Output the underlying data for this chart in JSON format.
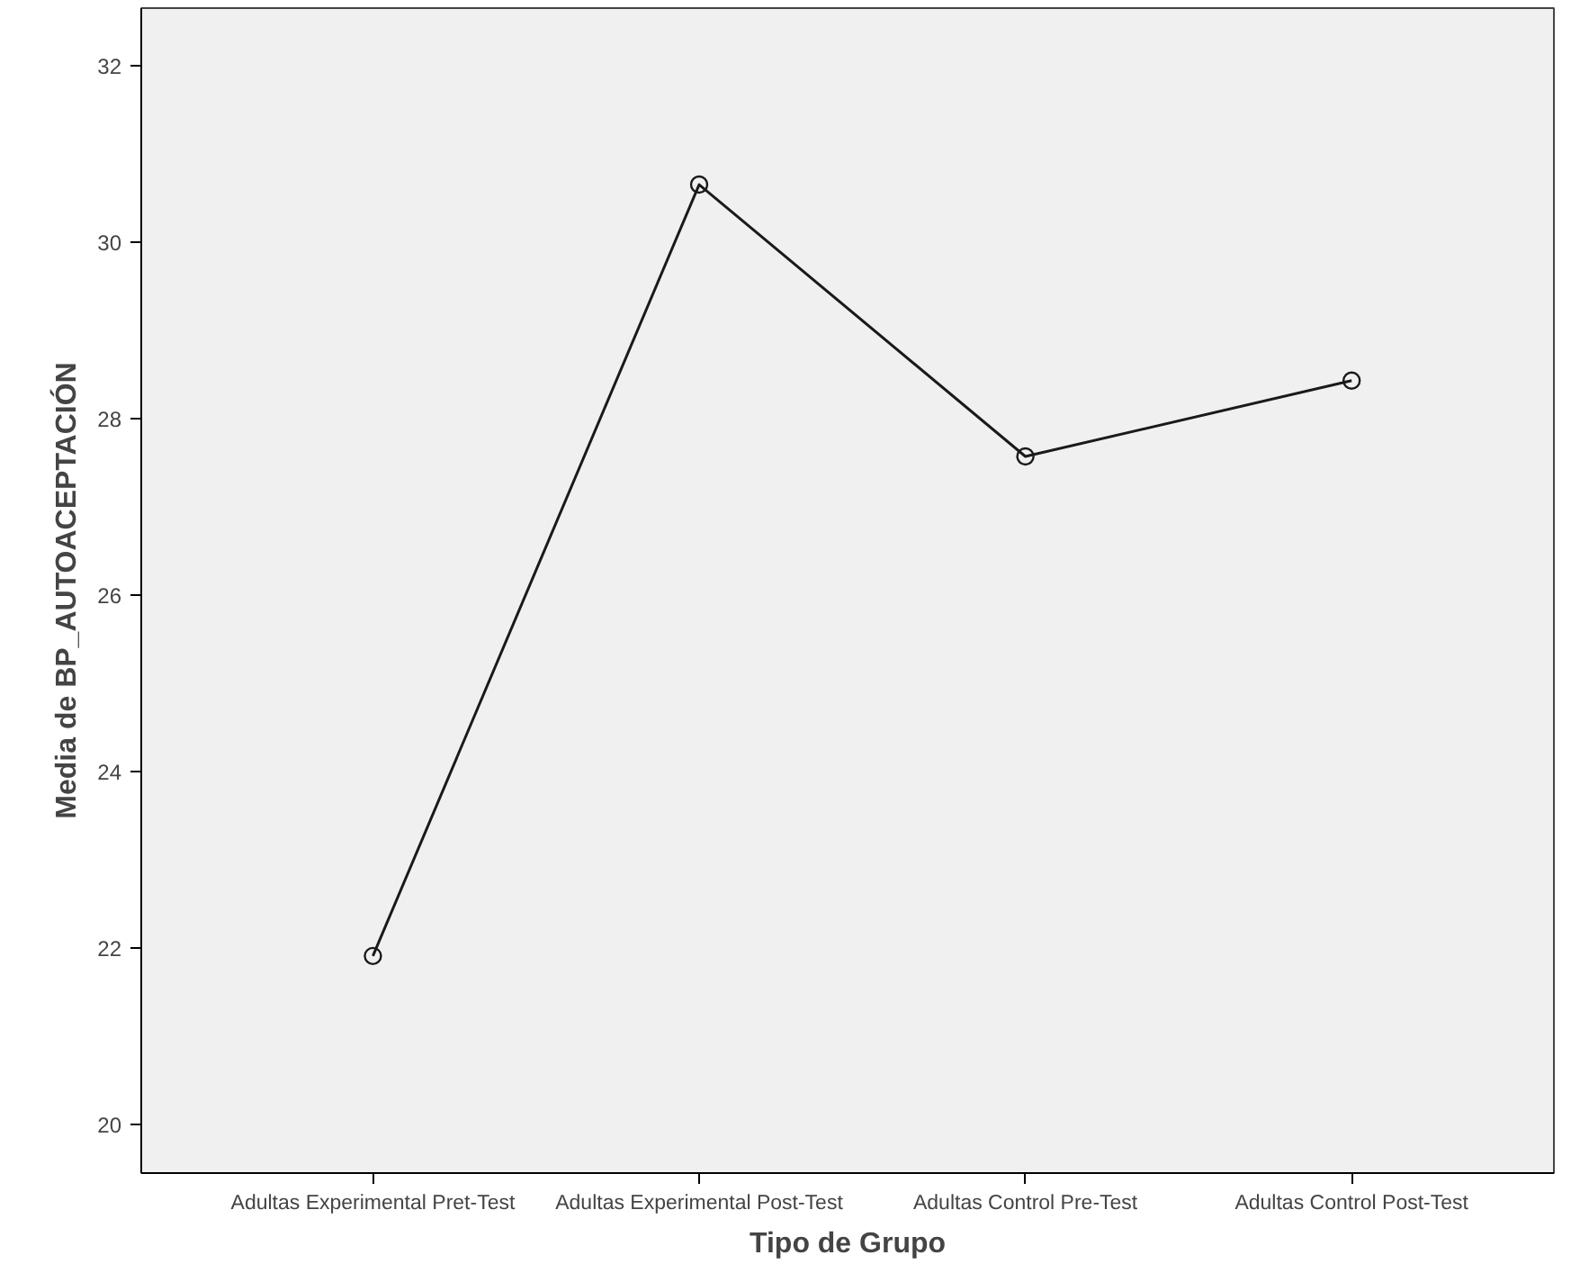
{
  "chart_data": {
    "type": "line",
    "xlabel": "Tipo de Grupo",
    "ylabel": "Media de BP_AUTOACEPTACIÓN",
    "categories": [
      "Adultas Experimental Pret-Test",
      "Adultas Experimental Post-Test",
      "Adultas Control Pre-Test",
      "Adultas Control Post-Test"
    ],
    "series": [
      {
        "color": "#1a1a1a",
        "values": [
          21.91,
          30.65,
          27.57,
          28.43
        ]
      }
    ],
    "ylim": [
      19.45,
      32.65
    ],
    "yticks": [
      20,
      22,
      24,
      26,
      28,
      30,
      32
    ],
    "grid": false,
    "marker": "circle",
    "line_style": "solid"
  }
}
